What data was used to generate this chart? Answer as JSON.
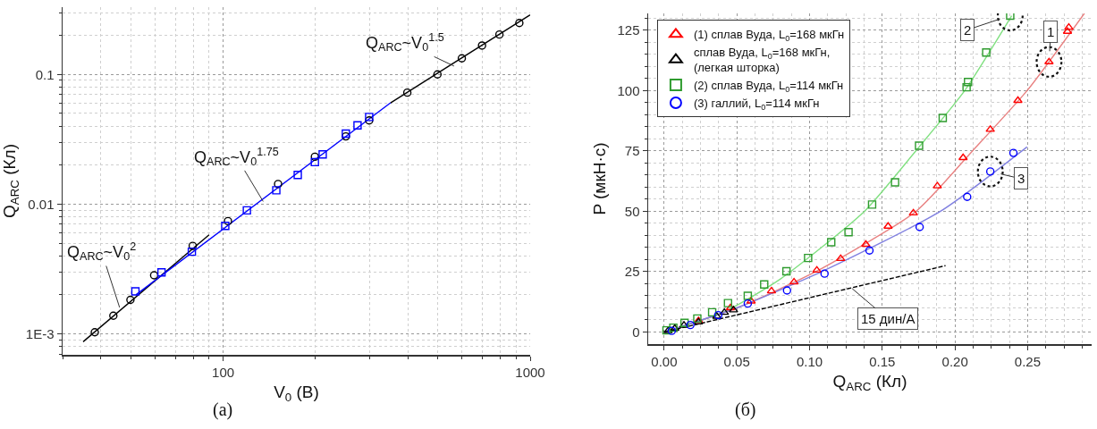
{
  "chart_data": [
    {
      "type": "scatter",
      "xlabel": "V$_{0}$ (B)",
      "ylabel": "Q$_{ARC}$ (Кл)",
      "log": "xy",
      "grid": true,
      "legend": false,
      "xlim": [
        30,
        1000
      ],
      "ylim": [
        0.00069,
        0.33
      ],
      "xticks": [
        {
          "value": 30,
          "label": null
        },
        {
          "value": 40,
          "label": null
        },
        {
          "value": 50,
          "label": null
        },
        {
          "value": 60,
          "label": null
        },
        {
          "value": 70,
          "label": null
        },
        {
          "value": 80,
          "label": null
        },
        {
          "value": 90,
          "label": null
        },
        100,
        {
          "value": 200,
          "label": null
        },
        {
          "value": 300,
          "label": null
        },
        {
          "value": 400,
          "label": null
        },
        {
          "value": 500,
          "label": null
        },
        {
          "value": 600,
          "label": null
        },
        {
          "value": 700,
          "label": null
        },
        {
          "value": 800,
          "label": null
        },
        {
          "value": 900,
          "label": null
        },
        1000
      ],
      "yticks": [
        {
          "value": 0.0007,
          "label": null
        },
        {
          "value": 0.0008,
          "label": null
        },
        {
          "value": 0.0009,
          "label": null
        },
        {
          "value": 0.001,
          "label": "1E-3"
        },
        {
          "value": 0.002,
          "label": null
        },
        {
          "value": 0.003,
          "label": null
        },
        {
          "value": 0.004,
          "label": null
        },
        {
          "value": 0.005,
          "label": null
        },
        {
          "value": 0.006,
          "label": null
        },
        {
          "value": 0.007,
          "label": null
        },
        {
          "value": 0.008,
          "label": null
        },
        {
          "value": 0.009,
          "label": null
        },
        0.01,
        {
          "value": 0.02,
          "label": null
        },
        {
          "value": 0.03,
          "label": null
        },
        {
          "value": 0.04,
          "label": null
        },
        {
          "value": 0.05,
          "label": null
        },
        {
          "value": 0.06,
          "label": null
        },
        {
          "value": 0.07,
          "label": null
        },
        {
          "value": 0.08,
          "label": null
        },
        {
          "value": 0.09,
          "label": null
        },
        0.1,
        {
          "value": 0.2,
          "label": null
        },
        {
          "value": 0.3,
          "label": null
        }
      ],
      "series": [
        {
          "type": "line",
          "color": "#000000",
          "marker": "none",
          "line_style": "solid",
          "x": [
            35,
            90
          ],
          "values": [
            0.00087,
            0.0058
          ]
        },
        {
          "type": "line",
          "color": "#0000ff",
          "marker": "none",
          "line_style": "solid",
          "x": [
            52,
            351
          ],
          "values": [
            0.002,
            0.0604
          ]
        },
        {
          "type": "line",
          "color": "#000000",
          "marker": "none",
          "line_style": "solid",
          "x": [
            351,
            1000
          ],
          "values": [
            0.0604,
            0.288
          ]
        },
        {
          "type": "scatter",
          "color": "#000000",
          "marker": "circle",
          "x": [
            38.2,
            43.9,
            49.9,
            59.6,
            79.6,
            103.7,
            151,
            199,
            251,
            299,
            398,
            499,
            599,
            697,
            794,
            922
          ],
          "values": [
            0.00103,
            0.00138,
            0.00183,
            0.00283,
            0.00477,
            0.0074,
            0.0143,
            0.0232,
            0.0333,
            0.0442,
            0.0724,
            0.1,
            0.133,
            0.167,
            0.203,
            0.249
          ]
        },
        {
          "type": "scatter",
          "color": "#0000ff",
          "marker": "square",
          "x": [
            51.8,
            63,
            79.1,
            101.6,
            119.5,
            149,
            175,
            199,
            211,
            251,
            274,
            299
          ],
          "values": [
            0.00213,
            0.00298,
            0.0043,
            0.0068,
            0.00896,
            0.0128,
            0.0168,
            0.0211,
            0.0242,
            0.035,
            0.0405,
            0.047
          ]
        }
      ],
      "annotations": [
        {
          "text": "Q$_{ARC}$~V$_{0}$$^{2}$",
          "x": 46,
          "y": 0.0016
        },
        {
          "text": "Q$_{ARC}$~V$_{0}$$^{1.75}$",
          "x": 135,
          "y": 0.0105
        },
        {
          "text": "Q$_{ARC}$~V$_{0}$$^{1.5}$",
          "x": 565,
          "y": 0.116
        },
        "(a)"
      ]
    },
    {
      "type": "scatter",
      "xlabel": "Q$_{ARC}$ (Кл)",
      "ylabel": "P (мкН·с)",
      "grid": true,
      "legend": "top left",
      "xlim": [
        -0.011,
        0.294
      ],
      "ylim": [
        -5,
        132
      ],
      "xticks": [
        {
          "value": 0,
          "label": "0.00"
        },
        {
          "value": 0.0125,
          "label": null
        },
        {
          "value": 0.025,
          "label": null
        },
        {
          "value": 0.0375,
          "label": null
        },
        0.05,
        {
          "value": 0.0625,
          "label": null
        },
        {
          "value": 0.075,
          "label": null
        },
        {
          "value": 0.0875,
          "label": null
        },
        {
          "value": 0.1,
          "label": "0.10"
        },
        {
          "value": 0.1125,
          "label": null
        },
        {
          "value": 0.125,
          "label": null
        },
        {
          "value": 0.1375,
          "label": null
        },
        0.15,
        {
          "value": 0.1625,
          "label": null
        },
        {
          "value": 0.175,
          "label": null
        },
        {
          "value": 0.1875,
          "label": null
        },
        {
          "value": 0.2,
          "label": "0.20"
        },
        {
          "value": 0.2125,
          "label": null
        },
        {
          "value": 0.225,
          "label": null
        },
        {
          "value": 0.2375,
          "label": null
        },
        0.25,
        {
          "value": 0.2625,
          "label": null
        },
        {
          "value": 0.275,
          "label": null
        },
        {
          "value": 0.2875,
          "label": null
        }
      ],
      "yticks": [
        0,
        {
          "value": 5,
          "label": null
        },
        {
          "value": 10,
          "label": null
        },
        {
          "value": 15,
          "label": null
        },
        {
          "value": 20,
          "label": null
        },
        25,
        {
          "value": 30,
          "label": null
        },
        {
          "value": 35,
          "label": null
        },
        {
          "value": 40,
          "label": null
        },
        {
          "value": 45,
          "label": null
        },
        50,
        {
          "value": 55,
          "label": null
        },
        {
          "value": 60,
          "label": null
        },
        {
          "value": 65,
          "label": null
        },
        {
          "value": 70,
          "label": null
        },
        75,
        {
          "value": 80,
          "label": null
        },
        {
          "value": 85,
          "label": null
        },
        {
          "value": 90,
          "label": null
        },
        {
          "value": 95,
          "label": null
        },
        100,
        {
          "value": 105,
          "label": null
        },
        {
          "value": 110,
          "label": null
        },
        {
          "value": 115,
          "label": null
        },
        {
          "value": 120,
          "label": null
        },
        125,
        {
          "value": 130,
          "label": null
        }
      ],
      "series": [
        {
          "type": "line",
          "color": "#80e080",
          "marker": "none",
          "line_style": "solid",
          "x": [
            0,
            0.04,
            0.08,
            0.1377,
            0.173,
            0.2067,
            0.239
          ],
          "values": [
            0,
            8,
            22,
            50,
            75,
            100,
            131
          ]
        },
        {
          "type": "line",
          "color": "#e88080",
          "marker": "none",
          "line_style": "solid",
          "x": [
            0,
            0.05,
            0.1042,
            0.1732,
            0.212,
            0.2496,
            0.289
          ],
          "values": [
            0,
            10,
            25,
            50,
            75,
            100,
            132
          ]
        },
        {
          "type": "line",
          "color": "#8080e0",
          "marker": "none",
          "line_style": "solid",
          "x": [
            0,
            0.05,
            0.1084,
            0.19,
            0.2496
          ],
          "values": [
            0,
            10,
            25,
            50,
            76.7
          ]
        },
        {
          "type": "line",
          "color": "#000000",
          "marker": "none",
          "line_style": "dashed",
          "x": [
            0,
            0.1935
          ],
          "values": [
            0,
            27.5
          ]
        },
        {
          "name": "(1) сплав Вуда, L$_{0}$=168 мкГн",
          "type": "scatter",
          "color": "#ff0000",
          "marker": "triangle",
          "x": [
            0.2783,
            0.2774,
            0.2647,
            0.2433,
            0.2243,
            0.2056,
            0.1879,
            0.1714,
            0.154,
            0.1387,
            0.1214,
            0.105,
            0.0893,
            0.0738,
            0.0598,
            0.0456,
            0.0236
          ],
          "values": [
            126.2,
            124.5,
            111.9,
            95.9,
            83.9,
            72.2,
            60.5,
            49.3,
            43.8,
            36.3,
            30.4,
            25.6,
            20.7,
            17,
            12.8,
            10,
            4.7
          ]
        },
        {
          "name": "сплав Вуда, L$_{0}$=168 мкГн,\n(легкая шторка)",
          "type": "scatter",
          "color": "#000000",
          "marker": "triangle",
          "x": [
            0.0477,
            0.0414,
            0.0362,
            0.0236,
            0.0136,
            0.0073,
            0.0027
          ],
          "values": [
            9.1,
            8.1,
            6.5,
            4.1,
            2.8,
            1.5,
            0.5
          ]
        },
        {
          "name": "(2) сплав Вуда, L$_{0}$=114 мкГн",
          "type": "scatter",
          "color": "#2e9b2e",
          "marker": "square",
          "x": [
            0.238,
            0.2215,
            0.209,
            0.208,
            0.1916,
            0.1753,
            0.1588,
            0.143,
            0.1268,
            0.1149,
            0.099,
            0.0841,
            0.0688,
            0.0575,
            0.0439,
            0.033,
            0.0228,
            0.014,
            0.0063,
            0.0016
          ],
          "values": [
            131.1,
            115.8,
            103.6,
            101.4,
            88.7,
            77.2,
            62,
            52.8,
            41.4,
            37.2,
            30.7,
            25.2,
            19.7,
            15,
            12,
            8.2,
            5.6,
            3.8,
            1.8,
            0.7
          ]
        },
        {
          "name": "(3) галлий, L$_{0}$=114 мкГн",
          "type": "scatter",
          "color": "#0000ff",
          "marker": "circle",
          "x": [
            0.2402,
            0.2243,
            0.2084,
            0.1757,
            0.1412,
            0.1103,
            0.0845,
            0.0575,
            0.0372,
            0.018,
            0.0052
          ],
          "values": [
            74.2,
            66.5,
            56,
            43.5,
            33.8,
            24.2,
            17.2,
            11.8,
            7,
            2.9,
            0.5
          ]
        }
      ],
      "annotations": [
        {
          "text": "2",
          "x": 0.238,
          "y": 131.1
        },
        {
          "text": "1",
          "x": 0.2647,
          "y": 111.9
        },
        {
          "text": "3",
          "x": 0.2243,
          "y": 66.5
        },
        {
          "text": "15 дин/А",
          "x": 0.1293,
          "y": 18
        },
        "(б)"
      ]
    }
  ]
}
